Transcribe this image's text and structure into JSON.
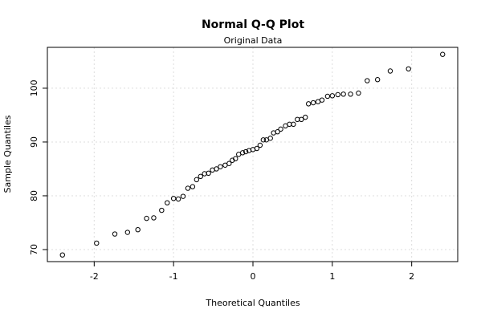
{
  "chart_data": {
    "type": "scatter",
    "title": "Normal Q-Q Plot",
    "subtitle": "Original Data",
    "x_label": "Theoretical Quantiles",
    "y_label": "Sample Quantiles",
    "x": [
      -2.4,
      -1.97,
      -1.74,
      -1.58,
      -1.45,
      -1.34,
      -1.25,
      -1.15,
      -1.08,
      -1.0,
      -0.94,
      -0.88,
      -0.82,
      -0.76,
      -0.71,
      -0.66,
      -0.61,
      -0.56,
      -0.51,
      -0.46,
      -0.41,
      -0.35,
      -0.3,
      -0.26,
      -0.22,
      -0.18,
      -0.13,
      -0.09,
      -0.05,
      0,
      0.05,
      0.09,
      0.13,
      0.17,
      0.22,
      0.26,
      0.31,
      0.35,
      0.41,
      0.46,
      0.51,
      0.56,
      0.61,
      0.66,
      0.7,
      0.76,
      0.82,
      0.87,
      0.94,
      1.0,
      1.07,
      1.14,
      1.23,
      1.33,
      1.44,
      1.57,
      1.73,
      1.96,
      2.39
    ],
    "values": [
      69.0,
      71.2,
      72.9,
      73.2,
      73.7,
      75.8,
      75.9,
      77.3,
      78.7,
      79.5,
      79.4,
      79.9,
      81.4,
      81.7,
      83.0,
      83.6,
      84.1,
      84.2,
      84.8,
      85.0,
      85.4,
      85.7,
      86.0,
      86.6,
      86.9,
      87.7,
      88.0,
      88.2,
      88.4,
      88.6,
      88.8,
      89.4,
      90.4,
      90.4,
      90.7,
      91.7,
      91.9,
      92.4,
      93.0,
      93.3,
      93.3,
      94.2,
      94.2,
      94.6,
      97.1,
      97.3,
      97.5,
      97.8,
      98.5,
      98.6,
      98.8,
      98.9,
      98.9,
      99.1,
      101.4,
      101.6,
      103.2,
      103.6,
      106.3
    ],
    "xlim": [
      -2.59,
      2.58
    ],
    "ylim": [
      67.76,
      107.6
    ],
    "xticks": [
      -2,
      -1,
      0,
      1,
      2
    ],
    "yticks": [
      70,
      80,
      90,
      100
    ],
    "grid": true,
    "color": "#000000"
  }
}
